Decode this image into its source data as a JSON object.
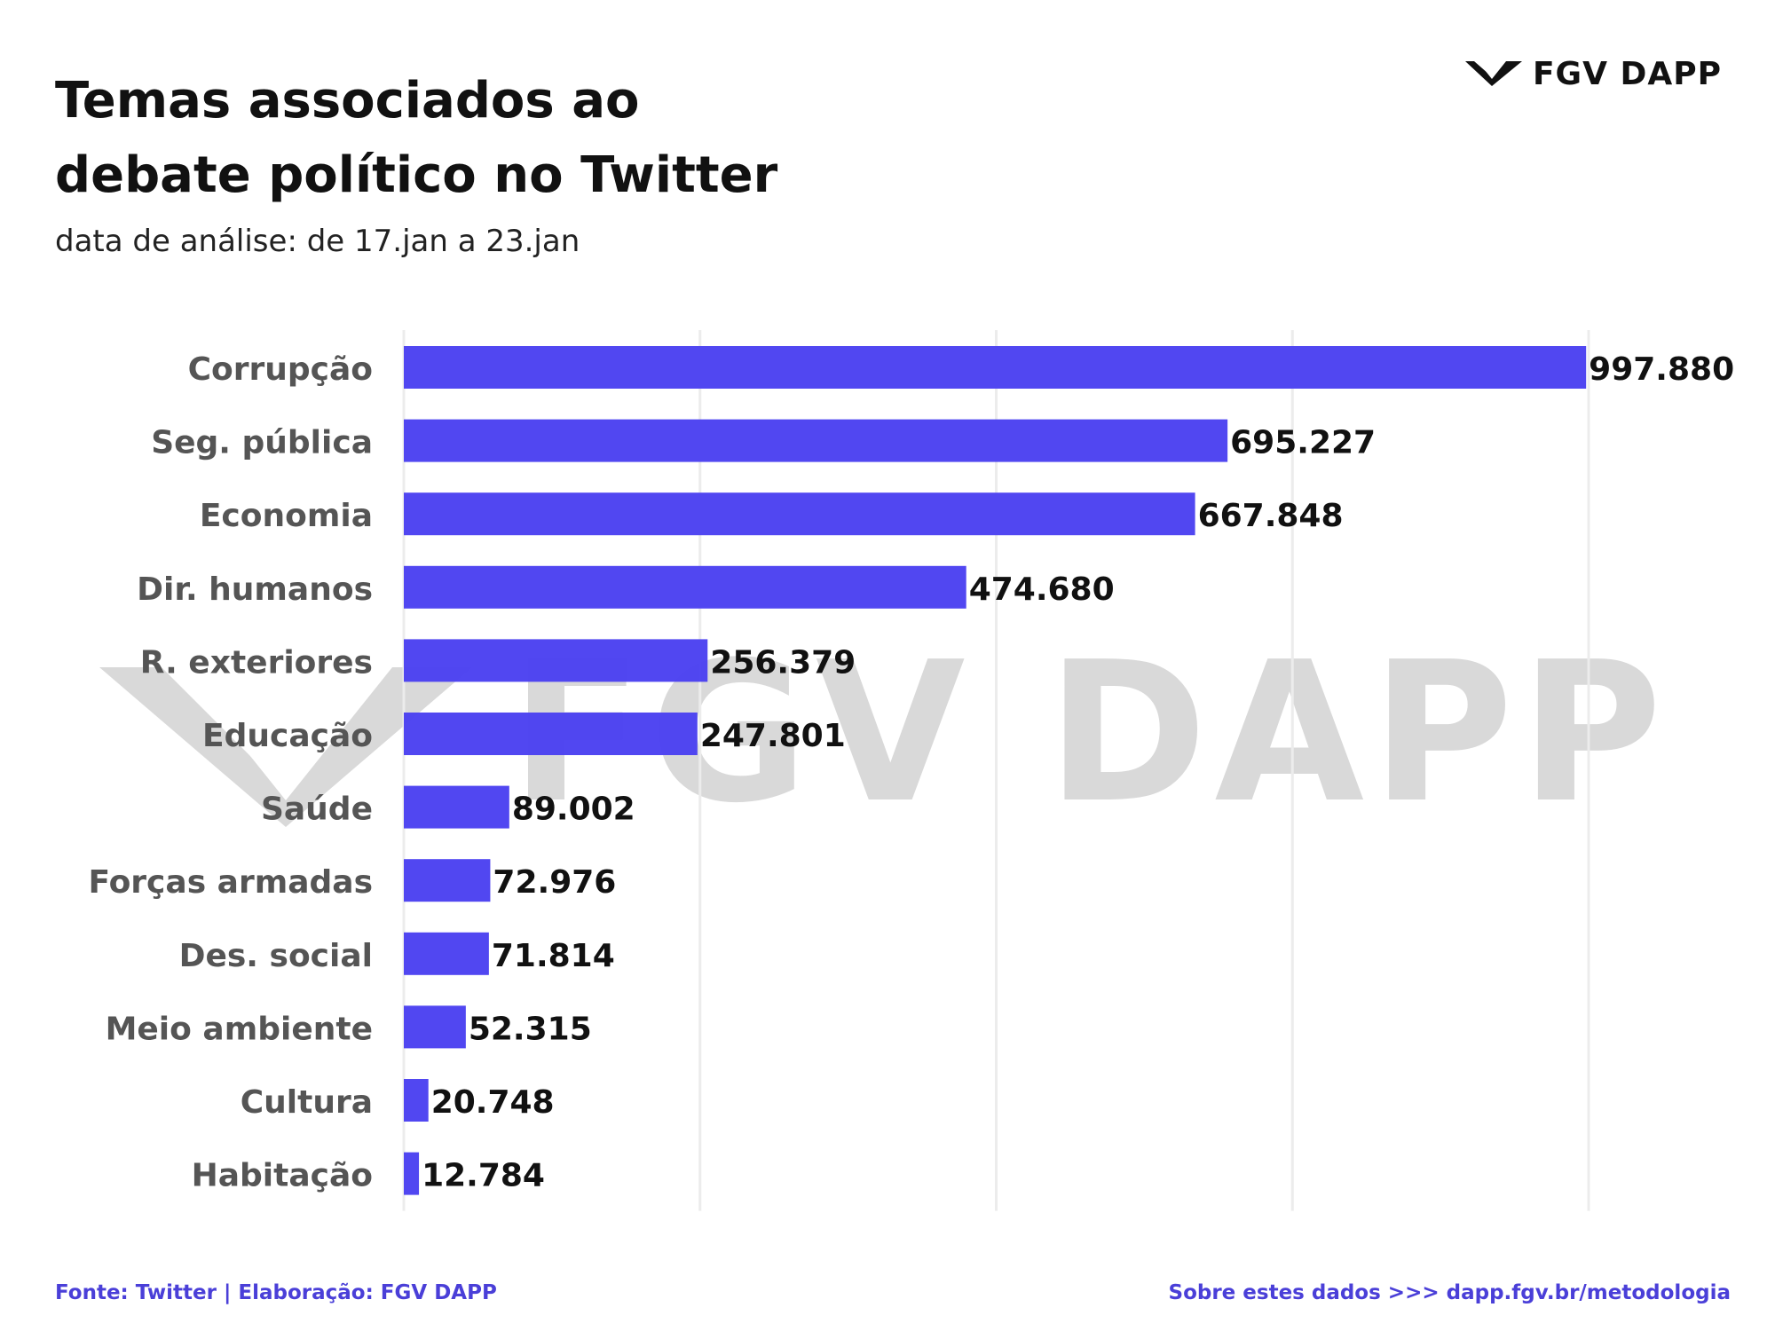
{
  "header": {
    "title_line1": "Temas associados ao",
    "title_line2": "debate político no Twitter",
    "subtitle": "data de análise: de 17.jan a 23.jan"
  },
  "logo": {
    "text": "FGV DAPP",
    "icon": "fgv-dapp-logo-icon"
  },
  "watermark": {
    "text": "FGV DAPP"
  },
  "footer": {
    "source": "Fonte: Twitter | Elaboração: FGV DAPP",
    "link": "Sobre estes dados >>> dapp.fgv.br/metodologia"
  },
  "colors": {
    "bar": "#4a3ff0",
    "grid": "#ececec",
    "category_label": "#555555",
    "value_label": "#111111",
    "watermark": "#d9d9d9",
    "footer": "#4a3fd8"
  },
  "chart_data": {
    "type": "bar",
    "orientation": "horizontal",
    "title": "Temas associados ao debate político no Twitter",
    "subtitle": "data de análise: de 17.jan a 23.jan",
    "xlabel": "",
    "ylabel": "",
    "categories": [
      "Corrupção",
      "Seg. pública",
      "Economia",
      "Dir. humanos",
      "R. exteriores",
      "Educação",
      "Saúde",
      "Forças armadas",
      "Des. social",
      "Meio ambiente",
      "Cultura",
      "Habitação"
    ],
    "values": [
      997880,
      695227,
      667848,
      474680,
      256379,
      247801,
      89002,
      72976,
      71814,
      52315,
      20748,
      12784
    ],
    "value_labels": [
      "997.880",
      "695.227",
      "667.848",
      "474.680",
      "256.379",
      "247.801",
      "89.002",
      "72.976",
      "71.814",
      "52.315",
      "20.748",
      "12.784"
    ],
    "xlim": [
      0,
      1000000
    ],
    "grid": true,
    "legend": "none"
  }
}
